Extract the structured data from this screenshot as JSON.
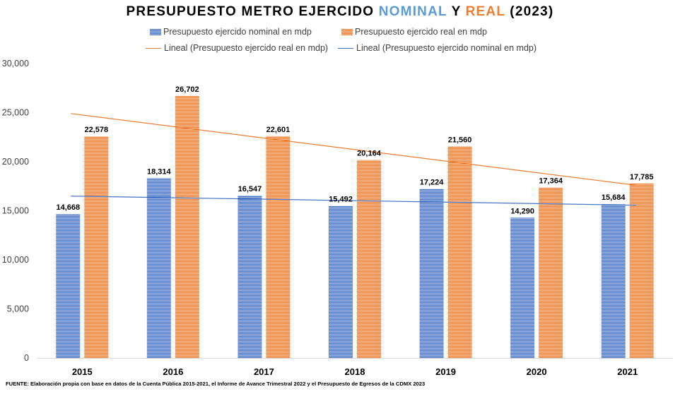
{
  "title": {
    "part1": "PRESUPUESTO METRO EJERCIDO ",
    "nominal_word": "NOMINAL",
    "part2": " Y ",
    "real_word": "REAL",
    "part3": " (2023)"
  },
  "colors": {
    "nominal": "#4472C4",
    "real": "#ED7D31",
    "title_nominal": "#5B9BD5",
    "title_real": "#ED7D31"
  },
  "legend": {
    "nominal_bar": "Presupuesto ejercido nominal en mdp",
    "real_bar": "Presupuesto ejercido real en mdp",
    "real_trend": "Lineal (Presupuesto ejercido real en mdp)",
    "nominal_trend": "Lineal (Presupuesto ejercido nominal en mdp)"
  },
  "footnote": "FUENTE: Elaboración propia con base en datos de la Cuenta Pública 2015-2021, el Informe de Avance Trimestral 2022 y el Presupuesto de Egresos de la CDMX 2023",
  "chart_data": {
    "type": "bar",
    "categories": [
      "2015",
      "2016",
      "2017",
      "2018",
      "2019",
      "2020",
      "2021"
    ],
    "series": [
      {
        "name": "Presupuesto ejercido nominal en mdp",
        "values": [
          14668,
          18314,
          16547,
          15492,
          17224,
          14290,
          15684
        ]
      },
      {
        "name": "Presupuesto ejercido real en mdp",
        "values": [
          22578,
          26702,
          22601,
          20164,
          21560,
          17364,
          17785
        ]
      }
    ],
    "data_labels": {
      "nominal": [
        "14,668",
        "18,314",
        "16,547",
        "15,492",
        "17,224",
        "14,290",
        "15,684"
      ],
      "real": [
        "22,578",
        "26,702",
        "22,601",
        "20,164",
        "21,560",
        "17,364",
        "17,785"
      ]
    },
    "trendlines": [
      {
        "name": "Lineal (Presupuesto ejercido real en mdp)",
        "type": "linear",
        "series": "real"
      },
      {
        "name": "Lineal (Presupuesto ejercido nominal en mdp)",
        "type": "linear",
        "series": "nominal"
      }
    ],
    "ylim": [
      0,
      30000
    ],
    "yticks": [
      0,
      5000,
      10000,
      15000,
      20000,
      25000,
      30000
    ],
    "ytick_labels": [
      "0",
      "5,000",
      "10,000",
      "15,000",
      "20,000",
      "25,000",
      "30,000"
    ],
    "grid": false,
    "legend_position": "top"
  }
}
